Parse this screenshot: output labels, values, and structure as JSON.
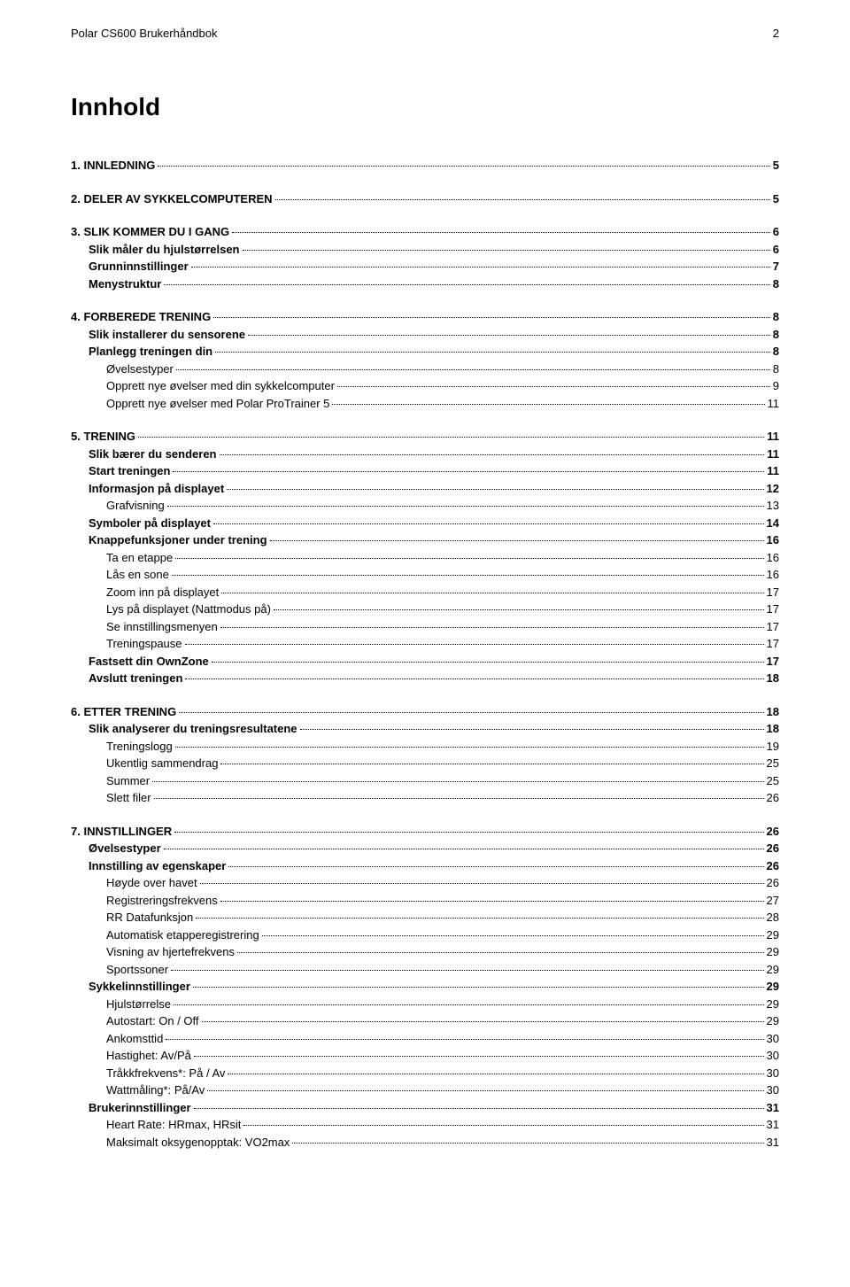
{
  "header": {
    "title": "Polar CS600 Brukerhåndbok",
    "page_number": "2"
  },
  "main_title": "Innhold",
  "toc": [
    {
      "entries": [
        {
          "label": "1. INNLEDNING",
          "page": "5",
          "level": 0,
          "bold": true
        }
      ]
    },
    {
      "entries": [
        {
          "label": "2. DELER AV SYKKELCOMPUTEREN",
          "page": "5",
          "level": 0,
          "bold": true
        }
      ]
    },
    {
      "entries": [
        {
          "label": "3. SLIK KOMMER DU I GANG",
          "page": "6",
          "level": 0,
          "bold": true
        },
        {
          "label": "Slik måler du hjulstørrelsen",
          "page": "6",
          "level": 1,
          "bold": true
        },
        {
          "label": "Grunninnstillinger",
          "page": "7",
          "level": 1,
          "bold": true
        },
        {
          "label": "Menystruktur",
          "page": "8",
          "level": 1,
          "bold": true
        }
      ]
    },
    {
      "entries": [
        {
          "label": "4. FORBEREDE TRENING",
          "page": "8",
          "level": 0,
          "bold": true
        },
        {
          "label": "Slik installerer du sensorene",
          "page": "8",
          "level": 1,
          "bold": true
        },
        {
          "label": "Planlegg treningen din",
          "page": "8",
          "level": 1,
          "bold": true
        },
        {
          "label": "Øvelsestyper",
          "page": "8",
          "level": 2,
          "bold": false
        },
        {
          "label": "Opprett nye øvelser med din sykkelcomputer",
          "page": "9",
          "level": 2,
          "bold": false
        },
        {
          "label": "Opprett nye øvelser med Polar ProTrainer 5",
          "page": "11",
          "level": 2,
          "bold": false
        }
      ]
    },
    {
      "entries": [
        {
          "label": "5. TRENING",
          "page": "11",
          "level": 0,
          "bold": true
        },
        {
          "label": "Slik bærer du senderen",
          "page": "11",
          "level": 1,
          "bold": true
        },
        {
          "label": "Start treningen",
          "page": "11",
          "level": 1,
          "bold": true
        },
        {
          "label": "Informasjon på displayet",
          "page": "12",
          "level": 1,
          "bold": true
        },
        {
          "label": "Grafvisning",
          "page": "13",
          "level": 2,
          "bold": false
        },
        {
          "label": "Symboler på displayet",
          "page": "14",
          "level": 1,
          "bold": true
        },
        {
          "label": "Knappefunksjoner under trening",
          "page": "16",
          "level": 1,
          "bold": true
        },
        {
          "label": "Ta en etappe",
          "page": "16",
          "level": 2,
          "bold": false
        },
        {
          "label": "Lås en sone",
          "page": "16",
          "level": 2,
          "bold": false
        },
        {
          "label": "Zoom inn på displayet",
          "page": "17",
          "level": 2,
          "bold": false
        },
        {
          "label": "Lys på displayet (Nattmodus på)",
          "page": "17",
          "level": 2,
          "bold": false
        },
        {
          "label": "Se innstillingsmenyen",
          "page": "17",
          "level": 2,
          "bold": false
        },
        {
          "label": "Treningspause",
          "page": "17",
          "level": 2,
          "bold": false
        },
        {
          "label": "Fastsett din OwnZone",
          "page": "17",
          "level": 1,
          "bold": true
        },
        {
          "label": "Avslutt treningen",
          "page": "18",
          "level": 1,
          "bold": true
        }
      ]
    },
    {
      "entries": [
        {
          "label": "6. ETTER TRENING",
          "page": "18",
          "level": 0,
          "bold": true
        },
        {
          "label": "Slik analyserer du treningsresultatene",
          "page": "18",
          "level": 1,
          "bold": true
        },
        {
          "label": "Treningslogg",
          "page": "19",
          "level": 2,
          "bold": false
        },
        {
          "label": "Ukentlig sammendrag",
          "page": "25",
          "level": 2,
          "bold": false
        },
        {
          "label": "Summer",
          "page": "25",
          "level": 2,
          "bold": false
        },
        {
          "label": "Slett filer",
          "page": "26",
          "level": 2,
          "bold": false
        }
      ]
    },
    {
      "entries": [
        {
          "label": "7. INNSTILLINGER",
          "page": "26",
          "level": 0,
          "bold": true
        },
        {
          "label": "Øvelsestyper",
          "page": "26",
          "level": 1,
          "bold": true
        },
        {
          "label": "Innstilling av egenskaper",
          "page": "26",
          "level": 1,
          "bold": true
        },
        {
          "label": "Høyde over havet",
          "page": "26",
          "level": 2,
          "bold": false
        },
        {
          "label": "Registreringsfrekvens",
          "page": "27",
          "level": 2,
          "bold": false
        },
        {
          "label": "RR Datafunksjon",
          "page": "28",
          "level": 2,
          "bold": false
        },
        {
          "label": "Automatisk etapperegistrering",
          "page": "29",
          "level": 2,
          "bold": false
        },
        {
          "label": "Visning av hjertefrekvens",
          "page": "29",
          "level": 2,
          "bold": false
        },
        {
          "label": "Sportssoner",
          "page": "29",
          "level": 2,
          "bold": false
        },
        {
          "label": "Sykkelinnstillinger",
          "page": "29",
          "level": 1,
          "bold": true
        },
        {
          "label": "Hjulstørrelse",
          "page": "29",
          "level": 2,
          "bold": false
        },
        {
          "label": "Autostart: On / Off",
          "page": "29",
          "level": 2,
          "bold": false
        },
        {
          "label": "Ankomsttid",
          "page": "30",
          "level": 2,
          "bold": false
        },
        {
          "label": "Hastighet: Av/På",
          "page": "30",
          "level": 2,
          "bold": false
        },
        {
          "label": "Tråkkfrekvens*: På / Av",
          "page": "30",
          "level": 2,
          "bold": false
        },
        {
          "label": "Wattmåling*: På/Av",
          "page": "30",
          "level": 2,
          "bold": false
        },
        {
          "label": "Brukerinnstillinger",
          "page": "31",
          "level": 1,
          "bold": true
        },
        {
          "label": "Heart Rate: HRmax, HRsit",
          "page": "31",
          "level": 2,
          "bold": false
        },
        {
          "label": "Maksimalt oksygenopptak: VO2max",
          "page": "31",
          "level": 2,
          "bold": false
        }
      ]
    }
  ]
}
